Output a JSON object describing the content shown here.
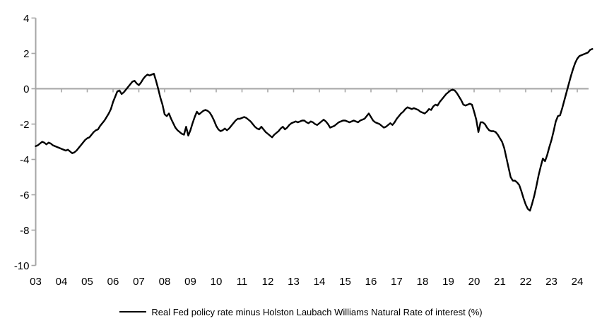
{
  "chart_data": {
    "type": "line",
    "title": "",
    "legend": {
      "label": "Real Fed policy rate minus Holston Laubach Williams Natural Rate of interest (%)",
      "position": "bottom",
      "marker": "line"
    },
    "x_axis": {
      "tick_labels": [
        "03",
        "04",
        "05",
        "06",
        "07",
        "08",
        "09",
        "10",
        "11",
        "12",
        "13",
        "14",
        "15",
        "16",
        "17",
        "18",
        "19",
        "20",
        "21",
        "22",
        "23",
        "24"
      ],
      "start": "2003-01",
      "end": "2024-08",
      "frequency": "monthly"
    },
    "y_axis": {
      "tick_labels": [
        "4",
        "2",
        "0",
        "-2",
        "-4",
        "-6",
        "-8",
        "-10"
      ],
      "ylim": [
        -10,
        4
      ]
    },
    "grid": "zero-line-only",
    "colors": {
      "line": "#000000",
      "axis": "#a6a6a6",
      "text": "#000000",
      "background": "#ffffff"
    },
    "series": [
      {
        "name": "Real Fed policy rate minus Holston Laubach Williams Natural Rate of interest (%)",
        "values": [
          -3.25,
          -3.2,
          -3.1,
          -3.0,
          -3.05,
          -3.15,
          -3.05,
          -3.1,
          -3.2,
          -3.25,
          -3.3,
          -3.35,
          -3.4,
          -3.45,
          -3.5,
          -3.45,
          -3.55,
          -3.65,
          -3.6,
          -3.5,
          -3.35,
          -3.2,
          -3.05,
          -2.9,
          -2.8,
          -2.75,
          -2.6,
          -2.45,
          -2.35,
          -2.3,
          -2.1,
          -1.95,
          -1.8,
          -1.6,
          -1.4,
          -1.15,
          -0.75,
          -0.45,
          -0.15,
          -0.1,
          -0.3,
          -0.2,
          -0.05,
          0.1,
          0.25,
          0.4,
          0.45,
          0.3,
          0.2,
          0.35,
          0.55,
          0.7,
          0.8,
          0.75,
          0.8,
          0.85,
          0.45,
          0.0,
          -0.5,
          -0.9,
          -1.45,
          -1.55,
          -1.4,
          -1.7,
          -1.95,
          -2.2,
          -2.35,
          -2.45,
          -2.55,
          -2.6,
          -2.15,
          -2.65,
          -2.35,
          -1.95,
          -1.6,
          -1.3,
          -1.45,
          -1.35,
          -1.25,
          -1.2,
          -1.25,
          -1.35,
          -1.55,
          -1.8,
          -2.1,
          -2.3,
          -2.4,
          -2.35,
          -2.25,
          -2.35,
          -2.25,
          -2.1,
          -1.95,
          -1.8,
          -1.7,
          -1.7,
          -1.65,
          -1.6,
          -1.65,
          -1.75,
          -1.85,
          -2.0,
          -2.15,
          -2.25,
          -2.3,
          -2.15,
          -2.3,
          -2.45,
          -2.55,
          -2.65,
          -2.75,
          -2.6,
          -2.5,
          -2.4,
          -2.25,
          -2.15,
          -2.3,
          -2.2,
          -2.05,
          -1.95,
          -1.9,
          -1.85,
          -1.9,
          -1.85,
          -1.8,
          -1.8,
          -1.9,
          -1.95,
          -1.85,
          -1.9,
          -2.0,
          -2.05,
          -1.95,
          -1.85,
          -1.75,
          -1.85,
          -2.0,
          -2.2,
          -2.15,
          -2.1,
          -2.0,
          -1.9,
          -1.85,
          -1.8,
          -1.8,
          -1.85,
          -1.9,
          -1.85,
          -1.8,
          -1.85,
          -1.9,
          -1.8,
          -1.75,
          -1.7,
          -1.55,
          -1.4,
          -1.6,
          -1.8,
          -1.9,
          -1.95,
          -2.0,
          -2.1,
          -2.2,
          -2.15,
          -2.05,
          -1.95,
          -2.05,
          -1.9,
          -1.7,
          -1.55,
          -1.4,
          -1.3,
          -1.15,
          -1.05,
          -1.1,
          -1.15,
          -1.1,
          -1.15,
          -1.2,
          -1.3,
          -1.35,
          -1.4,
          -1.3,
          -1.15,
          -1.2,
          -1.0,
          -0.9,
          -0.95,
          -0.75,
          -0.6,
          -0.45,
          -0.3,
          -0.2,
          -0.1,
          -0.05,
          -0.1,
          -0.25,
          -0.45,
          -0.65,
          -0.9,
          -0.95,
          -0.9,
          -0.85,
          -0.9,
          -1.3,
          -1.75,
          -2.45,
          -1.9,
          -1.9,
          -2.0,
          -2.2,
          -2.35,
          -2.4,
          -2.4,
          -2.45,
          -2.6,
          -2.8,
          -3.0,
          -3.35,
          -3.9,
          -4.45,
          -5.0,
          -5.2,
          -5.2,
          -5.3,
          -5.45,
          -5.8,
          -6.2,
          -6.55,
          -6.8,
          -6.9,
          -6.5,
          -6.05,
          -5.5,
          -4.9,
          -4.4,
          -3.95,
          -4.1,
          -3.75,
          -3.3,
          -2.9,
          -2.4,
          -1.85,
          -1.55,
          -1.5,
          -1.1,
          -0.65,
          -0.2,
          0.25,
          0.7,
          1.1,
          1.45,
          1.7,
          1.85,
          1.9,
          1.95,
          2.0,
          2.05,
          2.2,
          2.25
        ]
      }
    ]
  }
}
